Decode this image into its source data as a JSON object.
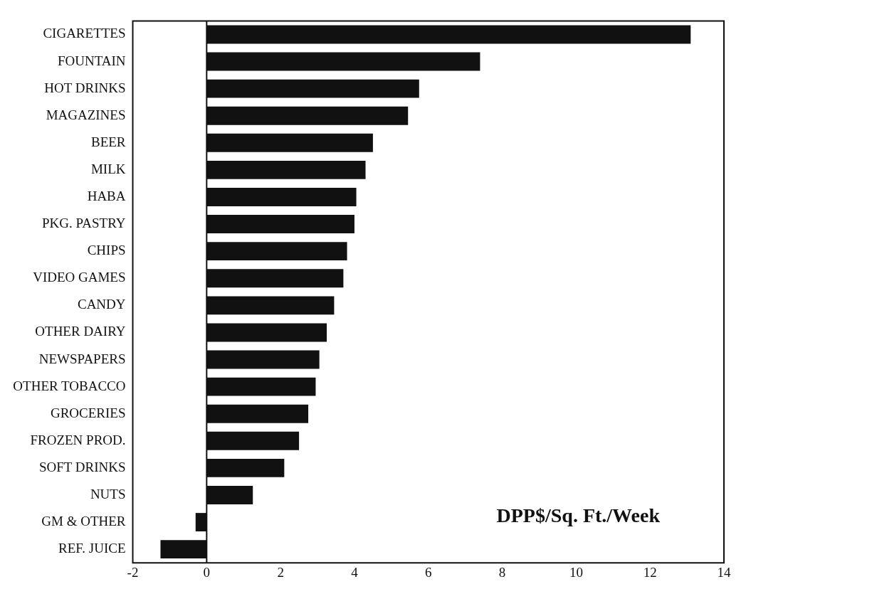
{
  "chart_data": {
    "type": "bar",
    "orientation": "horizontal",
    "categories": [
      "CIGARETTES",
      "FOUNTAIN",
      "HOT DRINKS",
      "MAGAZINES",
      "BEER",
      "MILK",
      "HABA",
      "PKG. PASTRY",
      "CHIPS",
      "VIDEO GAMES",
      "CANDY",
      "OTHER DAIRY",
      "NEWSPAPERS",
      "OTHER TOBACCO",
      "GROCERIES",
      "FROZEN PROD.",
      "SOFT DRINKS",
      "NUTS",
      "GM & OTHER",
      "REF. JUICE"
    ],
    "values": [
      13.1,
      7.4,
      5.75,
      5.45,
      4.5,
      4.3,
      4.05,
      4.0,
      3.8,
      3.7,
      3.45,
      3.25,
      3.05,
      2.95,
      2.75,
      2.5,
      2.1,
      1.25,
      -0.3,
      -1.25
    ],
    "color": "#111111",
    "xlim": [
      -2,
      14
    ],
    "xticks": [
      -2,
      0,
      2,
      4,
      6,
      8,
      10,
      12,
      14
    ],
    "ref_lines": [
      {
        "axis": "x",
        "value": 0
      }
    ],
    "annotations": [
      "DPP$/Sq. Ft./Week"
    ],
    "grid": false,
    "legend": false
  }
}
